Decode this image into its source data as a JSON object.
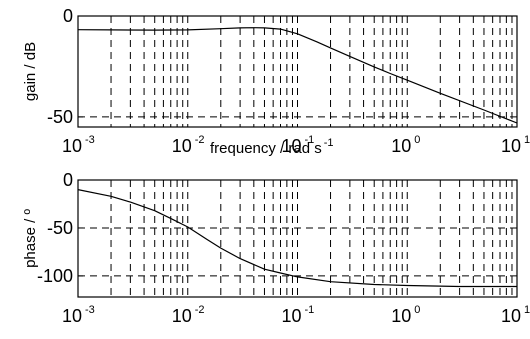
{
  "chart_data": [
    {
      "type": "line",
      "xscale": "log",
      "xlim": [
        0.001,
        10
      ],
      "ylim": [
        -55,
        0
      ],
      "ylabel": "gain / dB",
      "xlabel": "frequency / rad s",
      "xlabel_sup": "-1",
      "grid": true,
      "yticks": [
        {
          "value": 0,
          "label": "0"
        },
        {
          "value": -50,
          "label": "-50"
        }
      ],
      "xticks": [
        {
          "value": 0.001,
          "base": "10",
          "exp": "-3"
        },
        {
          "value": 0.01,
          "base": "10",
          "exp": "-2"
        },
        {
          "value": 0.1,
          "base": "10",
          "exp": "-1"
        },
        {
          "value": 1,
          "base": "10",
          "exp": "0"
        },
        {
          "value": 10,
          "base": "10",
          "exp": "1"
        }
      ],
      "series": [
        {
          "x": [
            0.001,
            0.002,
            0.005,
            0.01,
            0.02,
            0.03,
            0.04,
            0.05,
            0.07,
            0.1,
            0.15,
            0.2,
            0.3,
            0.5,
            0.7,
            1,
            2,
            5,
            10
          ],
          "y": [
            -6.8,
            -6.9,
            -7.0,
            -6.9,
            -6.3,
            -5.9,
            -5.8,
            -5.9,
            -6.5,
            -8.8,
            -12.8,
            -15.8,
            -20.0,
            -25.2,
            -28.5,
            -31.8,
            -38.3,
            -46.6,
            -53.0
          ]
        }
      ]
    },
    {
      "type": "line",
      "xscale": "log",
      "xlim": [
        0.001,
        10
      ],
      "ylim": [
        -122,
        0
      ],
      "ylabel": "phase / º",
      "grid": true,
      "yticks": [
        {
          "value": 0,
          "label": "0"
        },
        {
          "value": -50,
          "label": "-50"
        },
        {
          "value": -100,
          "label": "-100"
        }
      ],
      "xticks": [
        {
          "value": 0.001,
          "base": "10",
          "exp": "-3"
        },
        {
          "value": 0.01,
          "base": "10",
          "exp": "-2"
        },
        {
          "value": 0.1,
          "base": "10",
          "exp": "-1"
        },
        {
          "value": 1,
          "base": "10",
          "exp": "0"
        },
        {
          "value": 10,
          "base": "10",
          "exp": "1"
        }
      ],
      "series": [
        {
          "x": [
            0.001,
            0.002,
            0.003,
            0.005,
            0.007,
            0.01,
            0.015,
            0.02,
            0.03,
            0.05,
            0.07,
            0.1,
            0.2,
            0.5,
            1,
            3,
            10
          ],
          "y": [
            -10,
            -17,
            -23,
            -32,
            -40,
            -49,
            -62,
            -71,
            -82,
            -93,
            -97,
            -101,
            -106,
            -109,
            -110,
            -111,
            -111
          ]
        }
      ]
    }
  ]
}
